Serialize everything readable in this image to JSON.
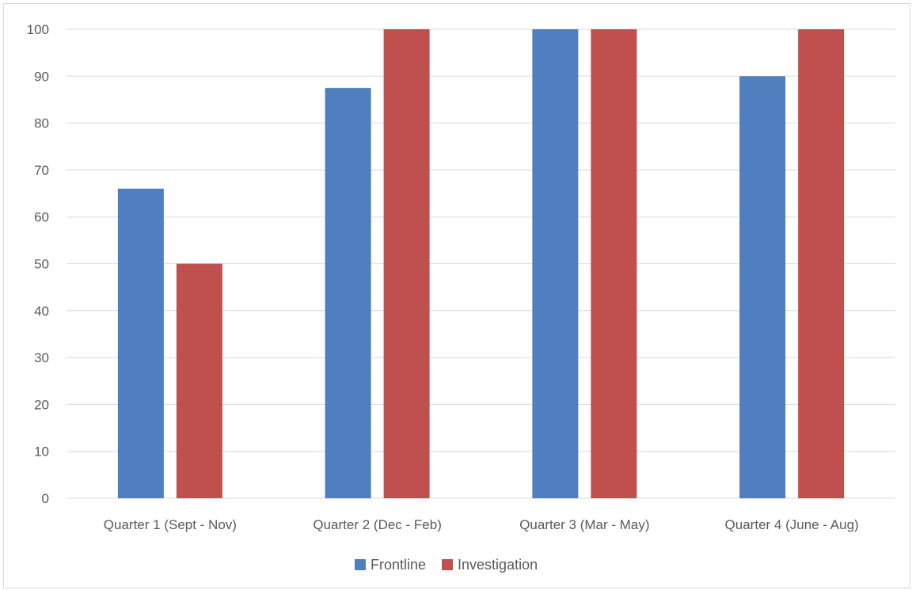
{
  "chart_data": {
    "type": "bar",
    "title": "",
    "xlabel": "",
    "ylabel": "",
    "categories": [
      "Quarter 1 (Sept - Nov)",
      "Quarter 2 (Dec - Feb)",
      "Quarter 3 (Mar - May)",
      "Quarter 4 (June - Aug)"
    ],
    "series": [
      {
        "name": "Frontline",
        "values": [
          66,
          87.5,
          100,
          90
        ],
        "color": "#4f7fbe"
      },
      {
        "name": "Investigation",
        "values": [
          50,
          100,
          100,
          100
        ],
        "color": "#c0504d"
      }
    ],
    "ylim": [
      0,
      100
    ],
    "yticks": [
      0,
      10,
      20,
      30,
      40,
      50,
      60,
      70,
      80,
      90,
      100
    ],
    "grid": true,
    "legend_position": "bottom"
  }
}
